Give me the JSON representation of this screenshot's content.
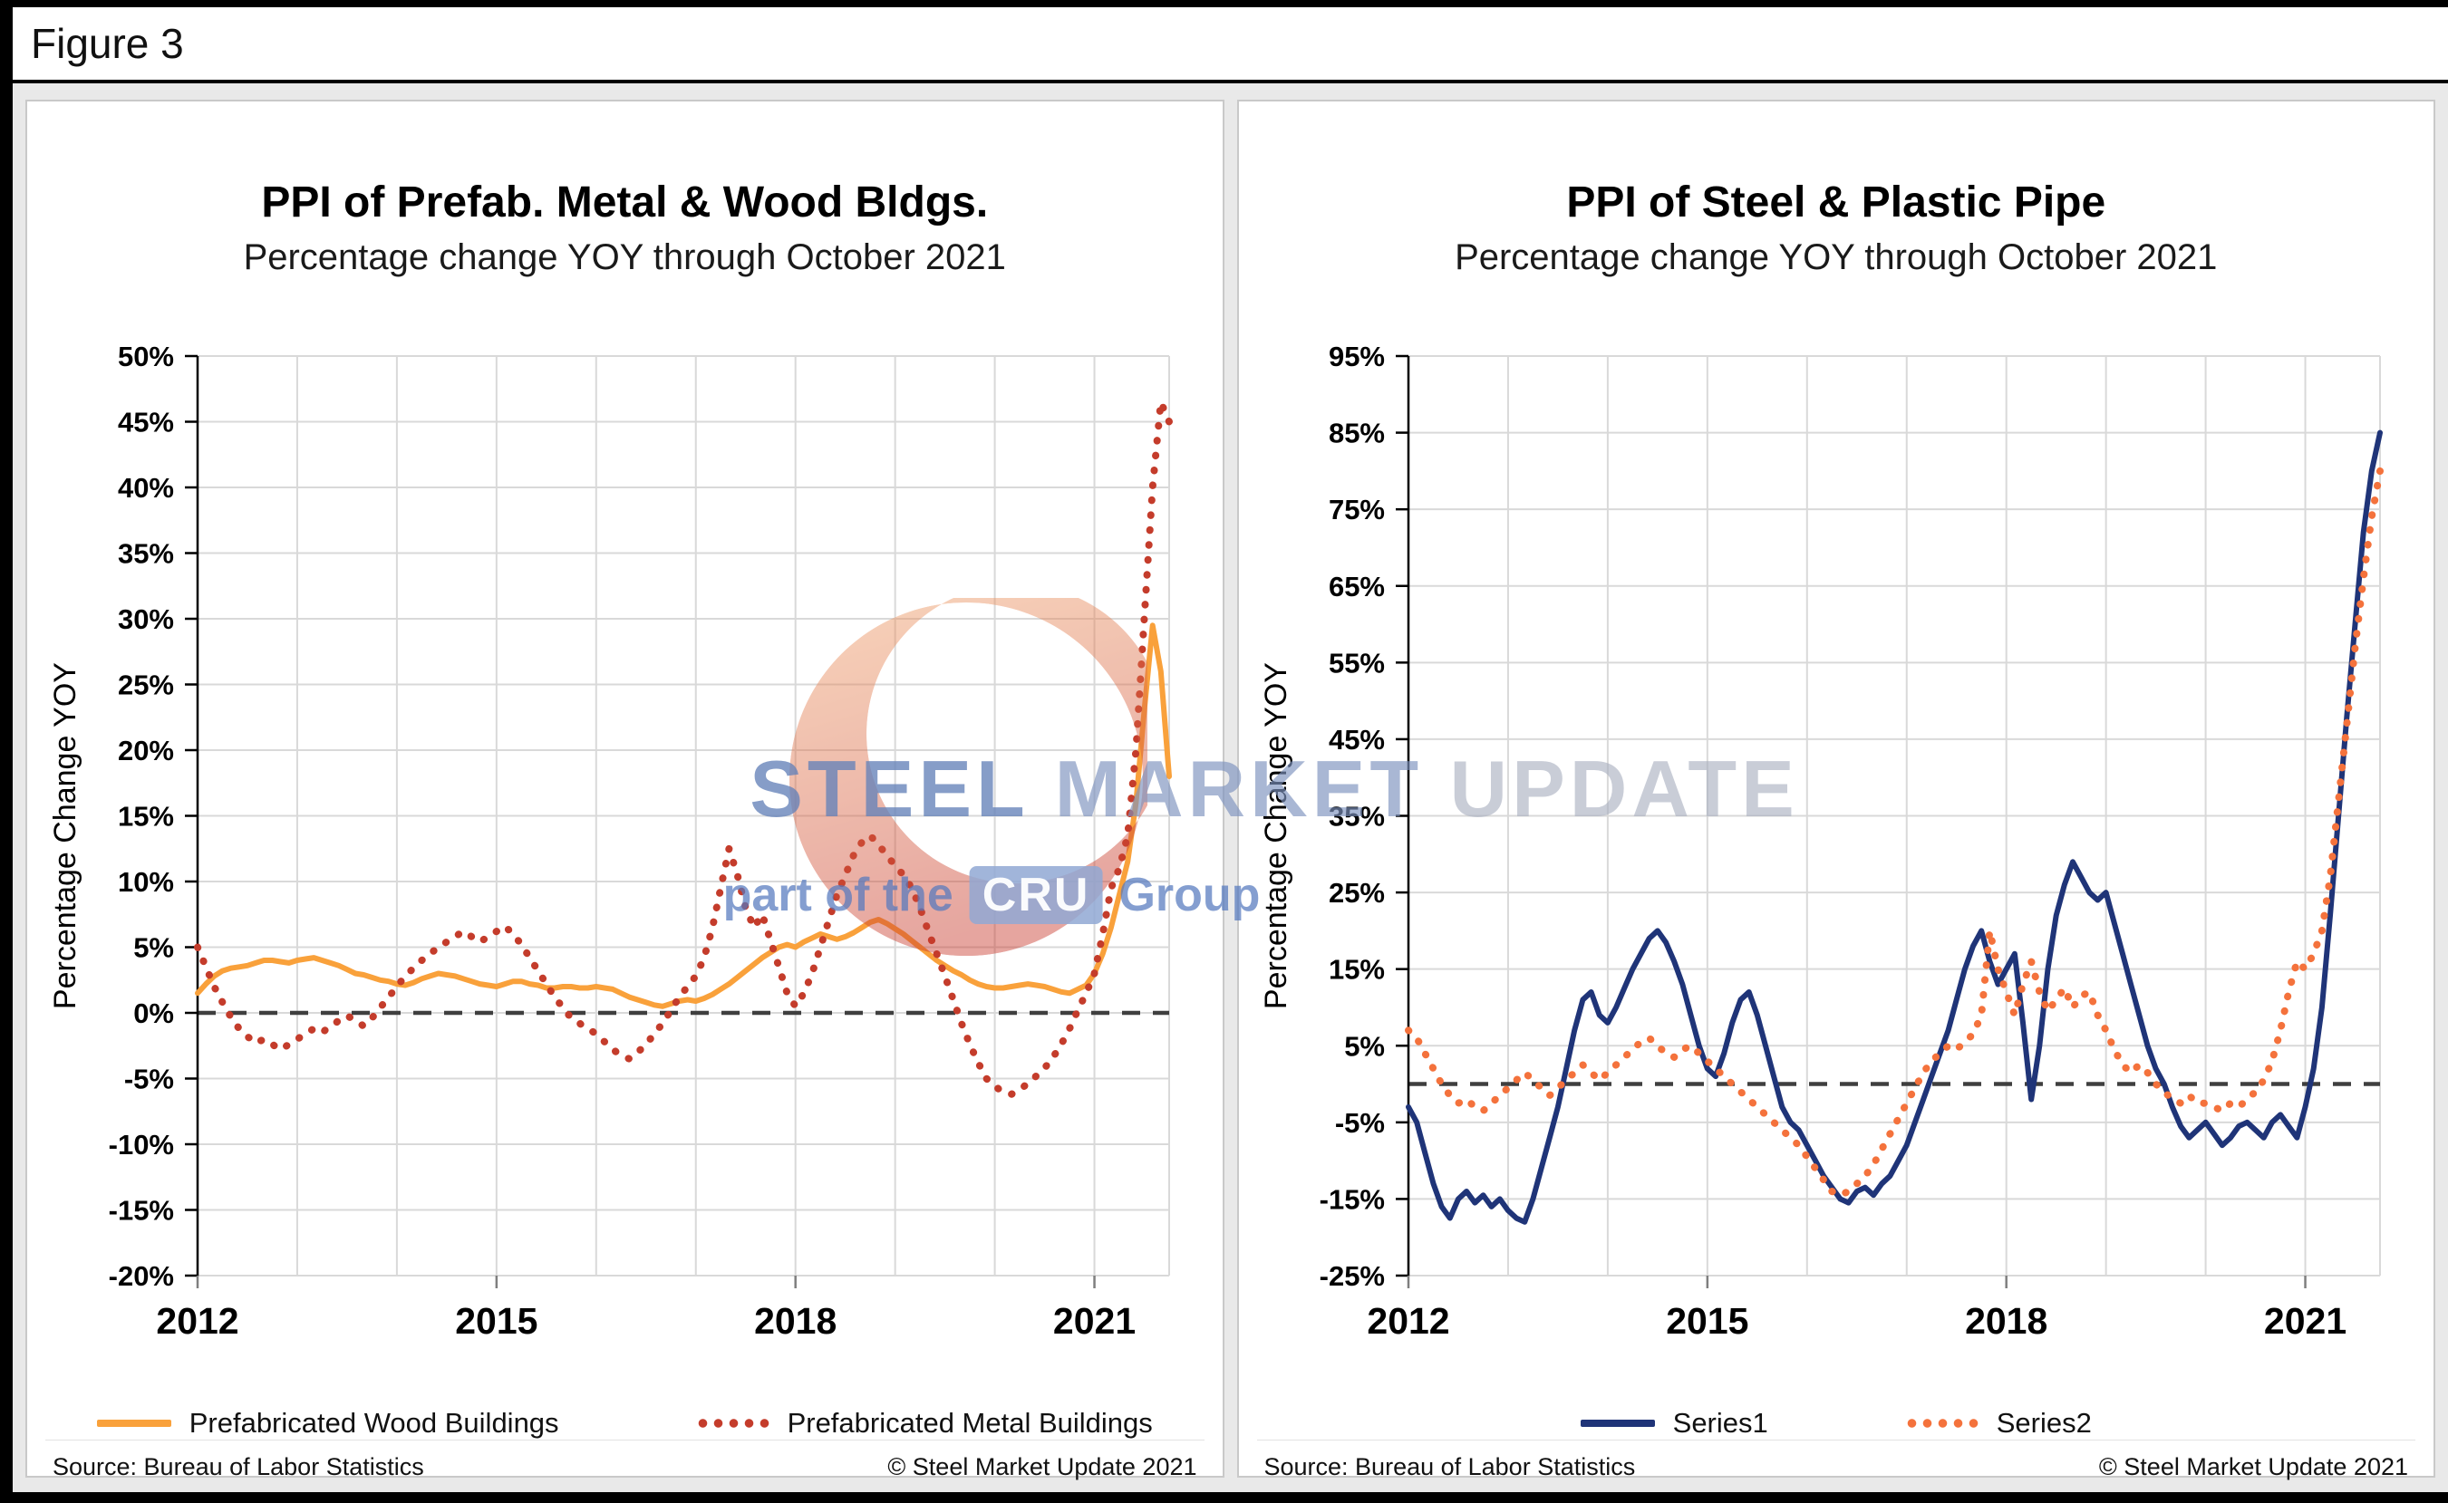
{
  "figure_label": "Figure 3",
  "watermark": {
    "steel": "STEEL",
    "market": "MARKET",
    "update": "UPDATE",
    "part_of_the": "part of the",
    "cru": "CRU",
    "group": "Group"
  },
  "panels": [
    {
      "title": "PPI of Prefab. Metal & Wood Bldgs.",
      "subtitle": "Percentage change YOY through October 2021",
      "ylabel": "Percentage Change YOY",
      "source": "Source: Bureau of Labor Statistics",
      "copyright": "© Steel Market Update 2021"
    },
    {
      "title": "PPI of Steel & Plastic Pipe",
      "subtitle": "Percentage change YOY through October 2021",
      "ylabel": "Percentage Change YOY",
      "source": "Source: Bureau of Labor Statistics",
      "copyright": "© Steel Market Update 2021"
    }
  ],
  "chart_data": [
    {
      "type": "line",
      "title": "PPI of Prefab. Metal & Wood Bldgs.",
      "subtitle": "Percentage change YOY through October 2021",
      "ylabel": "Percentage Change YOY",
      "ylim": [
        -20,
        50
      ],
      "ytick_step": 5,
      "start_year": 2012,
      "x_start": "2012-01",
      "x_end": "2021-10",
      "x_frequency": "monthly",
      "xtick_labels": [
        "2012",
        "2015",
        "2018",
        "2021"
      ],
      "grid": true,
      "zero_line": "dashed",
      "legend_position": "bottom",
      "series": [
        {
          "name": "Prefabricated Wood Buildings",
          "color": "#F9A13B",
          "style": "solid",
          "values": [
            1.5,
            2.2,
            2.8,
            3.2,
            3.4,
            3.5,
            3.6,
            3.8,
            4.0,
            4.0,
            3.9,
            3.8,
            4.0,
            4.1,
            4.2,
            4.0,
            3.8,
            3.6,
            3.3,
            3.0,
            2.9,
            2.7,
            2.5,
            2.4,
            2.2,
            2.1,
            2.3,
            2.6,
            2.8,
            3.0,
            2.9,
            2.8,
            2.6,
            2.4,
            2.2,
            2.1,
            2.0,
            2.2,
            2.4,
            2.4,
            2.2,
            2.1,
            1.9,
            1.9,
            2.0,
            2.0,
            1.9,
            1.9,
            2.0,
            1.9,
            1.8,
            1.5,
            1.2,
            1.0,
            0.8,
            0.6,
            0.5,
            0.7,
            0.9,
            1.0,
            0.9,
            1.1,
            1.4,
            1.8,
            2.2,
            2.7,
            3.2,
            3.7,
            4.2,
            4.6,
            5.0,
            5.2,
            5.0,
            5.4,
            5.7,
            6.0,
            5.8,
            5.6,
            5.8,
            6.1,
            6.5,
            6.9,
            7.1,
            6.8,
            6.4,
            6.0,
            5.5,
            5.0,
            4.5,
            4.0,
            3.6,
            3.2,
            2.9,
            2.5,
            2.2,
            2.0,
            1.9,
            1.9,
            2.0,
            2.1,
            2.2,
            2.1,
            2.0,
            1.8,
            1.6,
            1.5,
            1.8,
            2.1,
            3.0,
            4.5,
            6.5,
            9.0,
            11.5,
            16.0,
            23.0,
            29.5,
            26.0,
            18.0
          ]
        },
        {
          "name": "Prefabricated Metal Buildings",
          "color": "#C43C2B",
          "style": "dotted",
          "values": [
            5.0,
            3.5,
            2.0,
            0.8,
            -0.3,
            -1.2,
            -1.8,
            -2.3,
            -2.0,
            -2.4,
            -2.8,
            -2.4,
            -2.0,
            -1.6,
            -1.2,
            -1.5,
            -1.0,
            -0.6,
            -0.2,
            -0.6,
            -1.0,
            -0.4,
            0.4,
            1.2,
            2.0,
            2.8,
            3.4,
            4.0,
            4.5,
            5.0,
            5.4,
            5.8,
            6.2,
            5.8,
            5.4,
            5.8,
            6.2,
            6.6,
            6.0,
            5.2,
            4.2,
            3.2,
            2.2,
            1.2,
            0.4,
            -0.4,
            -0.8,
            -1.2,
            -1.6,
            -2.2,
            -2.8,
            -3.2,
            -3.5,
            -3.0,
            -2.4,
            -1.6,
            -0.8,
            0.2,
            1.2,
            2.0,
            2.8,
            4.2,
            6.5,
            9.5,
            12.5,
            10.5,
            8.0,
            6.5,
            7.5,
            5.5,
            3.5,
            1.5,
            0.5,
            1.5,
            3.0,
            5.0,
            7.0,
            9.0,
            10.5,
            12.0,
            13.0,
            13.5,
            12.8,
            12.0,
            11.2,
            10.5,
            9.5,
            8.0,
            6.2,
            4.5,
            2.8,
            1.0,
            -0.8,
            -2.4,
            -3.8,
            -5.0,
            -5.6,
            -6.0,
            -6.2,
            -5.8,
            -5.4,
            -4.8,
            -4.2,
            -3.4,
            -2.4,
            -1.2,
            0.2,
            1.5,
            3.0,
            6.0,
            9.5,
            11.0,
            13.5,
            20.0,
            30.0,
            40.0,
            46.5,
            45.0
          ]
        }
      ]
    },
    {
      "type": "line",
      "title": "PPI of Steel & Plastic Pipe",
      "subtitle": "Percentage change YOY through October 2021",
      "ylabel": "Percentage Change YOY",
      "ylim": [
        -25,
        95
      ],
      "ytick_step": 10,
      "start_year": 2012,
      "x_start": "2012-01",
      "x_end": "2021-10",
      "x_frequency": "monthly",
      "xtick_labels": [
        "2012",
        "2015",
        "2018",
        "2021"
      ],
      "grid": true,
      "zero_line": "dashed",
      "legend_position": "bottom",
      "series": [
        {
          "name": "Series1",
          "color": "#1F3478",
          "style": "solid",
          "values": [
            -3,
            -5,
            -9,
            -13,
            -16,
            -17.5,
            -15,
            -14,
            -15.5,
            -14.5,
            -16,
            -15,
            -16.5,
            -17.5,
            -18,
            -15,
            -11,
            -7,
            -3,
            2,
            7,
            11,
            12,
            9,
            8,
            10,
            12.5,
            15,
            17,
            19,
            20,
            18.5,
            16,
            13,
            9,
            5,
            2,
            1,
            4,
            8,
            11,
            12,
            9,
            5,
            1,
            -3,
            -5,
            -6,
            -8,
            -10,
            -12,
            -13.5,
            -15,
            -15.5,
            -14,
            -13.5,
            -14.5,
            -13,
            -12,
            -10,
            -8,
            -5,
            -2,
            1,
            4,
            7,
            11,
            15,
            18,
            20,
            16,
            13,
            15,
            17,
            8,
            -2,
            5,
            15,
            22,
            26,
            29,
            27,
            25,
            24,
            25,
            21,
            17,
            13,
            9,
            5,
            2,
            0,
            -3,
            -5.5,
            -7,
            -6,
            -5,
            -6.5,
            -8,
            -7,
            -5.5,
            -5,
            -6,
            -7,
            -5,
            -4,
            -5.5,
            -7,
            -3,
            2,
            10,
            22,
            35,
            48,
            60,
            72,
            80,
            85
          ]
        },
        {
          "name": "Series2",
          "color": "#F4723C",
          "style": "dotted",
          "values": [
            7,
            6,
            4,
            2,
            0,
            -1.5,
            -2.5,
            -2,
            -3,
            -3.5,
            -2.5,
            -1.5,
            -0.5,
            0.5,
            1.5,
            0.5,
            -0.5,
            -1.5,
            -0.5,
            0.5,
            1.5,
            2.5,
            1.5,
            0.5,
            1.5,
            2.5,
            3.5,
            4.5,
            5.5,
            6,
            5,
            4,
            3.5,
            4.5,
            5,
            4,
            3,
            2,
            1,
            0,
            -1,
            -2,
            -3,
            -4,
            -5,
            -6,
            -7,
            -8,
            -9.5,
            -11,
            -12.5,
            -14,
            -14.5,
            -14,
            -13,
            -12,
            -10.5,
            -8.5,
            -6.5,
            -4.5,
            -2.5,
            -0.5,
            1.5,
            3,
            4,
            5,
            4.5,
            5.5,
            6.5,
            9,
            20,
            15,
            12,
            9,
            13,
            16,
            12,
            9.5,
            11,
            12.5,
            10,
            11.5,
            12,
            9,
            7,
            4.5,
            2.5,
            1.5,
            2.5,
            1.5,
            0,
            -1,
            -2,
            -2.5,
            -1.5,
            -2.5,
            -2.5,
            -3,
            -3.5,
            -2.5,
            -3,
            -2,
            -1,
            0.5,
            3,
            7,
            12,
            16,
            15,
            17,
            20,
            27,
            37,
            47,
            57,
            66,
            74,
            80
          ]
        }
      ]
    }
  ]
}
